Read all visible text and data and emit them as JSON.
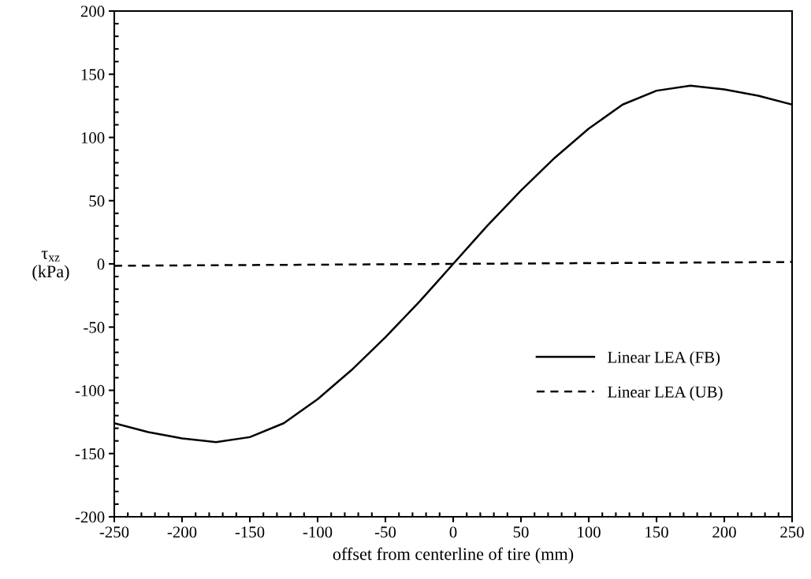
{
  "chart_data": {
    "type": "line",
    "xlabel": "offset from centerline of tire (mm)",
    "ylabel": "τ$_{xz}$\n(kPa)",
    "xlim": [
      -250,
      250
    ],
    "xticks": [
      -250,
      -200,
      -150,
      -100,
      -50,
      0,
      50,
      100,
      150,
      200,
      250
    ],
    "ylim": [
      -200,
      200
    ],
    "yticks": [
      -200,
      -150,
      -100,
      -50,
      0,
      50,
      100,
      150,
      200
    ],
    "grid": false,
    "legend": "bottom right",
    "marker": "none",
    "series": [
      {
        "name": "Linear LEA (FB)",
        "color": "#000000",
        "line_style": "solid",
        "x": [
          -250,
          -225,
          -200,
          -175,
          -150,
          -125,
          -100,
          -75,
          -50,
          -25,
          -12.5,
          0,
          12.5,
          25,
          50,
          75,
          100,
          125,
          150,
          175,
          200,
          225,
          250
        ],
        "values": [
          -126,
          -133,
          -138,
          -141,
          -137,
          -126,
          -107,
          -84,
          -58,
          -30,
          -15,
          0,
          15,
          30,
          58,
          84,
          107,
          126,
          137,
          141,
          138,
          133,
          126
        ]
      },
      {
        "name": "Linear LEA (UB)",
        "color": "#000000",
        "line_style": "dashed",
        "x": [
          -250,
          0,
          250
        ],
        "values": [
          -1.5,
          0,
          1.5
        ]
      }
    ]
  }
}
